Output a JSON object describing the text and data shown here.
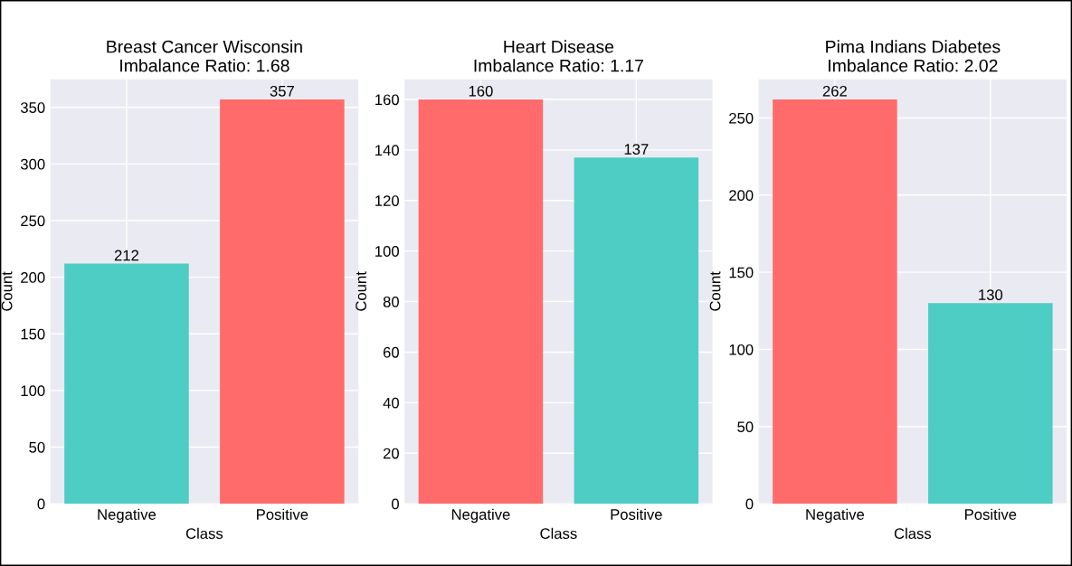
{
  "chart_data": [
    {
      "type": "bar",
      "title": "Breast Cancer Wisconsin\nImbalance Ratio: 1.68",
      "xlabel": "Class",
      "ylabel": "Count",
      "categories": [
        "Negative",
        "Positive"
      ],
      "values": [
        212,
        357
      ],
      "colors": [
        "#4ecdc4",
        "#ff6b6b"
      ],
      "ylim": [
        0,
        374.85
      ],
      "yticks": [
        0,
        50,
        100,
        150,
        200,
        250,
        300,
        350
      ],
      "grid": true,
      "data_labels": true
    },
    {
      "type": "bar",
      "title": "Heart Disease\nImbalance Ratio: 1.17",
      "xlabel": "Class",
      "ylabel": "Count",
      "categories": [
        "Negative",
        "Positive"
      ],
      "values": [
        160,
        137
      ],
      "colors": [
        "#ff6b6b",
        "#4ecdc4"
      ],
      "ylim": [
        0,
        168
      ],
      "yticks": [
        0,
        20,
        40,
        60,
        80,
        100,
        120,
        140,
        160
      ],
      "grid": true,
      "data_labels": true
    },
    {
      "type": "bar",
      "title": "Pima Indians Diabetes\nImbalance Ratio: 2.02",
      "xlabel": "Class",
      "ylabel": "Count",
      "categories": [
        "Negative",
        "Positive"
      ],
      "values": [
        262,
        130
      ],
      "colors": [
        "#ff6b6b",
        "#4ecdc4"
      ],
      "ylim": [
        0,
        275.1
      ],
      "yticks": [
        0,
        50,
        100,
        150,
        200,
        250
      ],
      "grid": true,
      "data_labels": true
    }
  ]
}
